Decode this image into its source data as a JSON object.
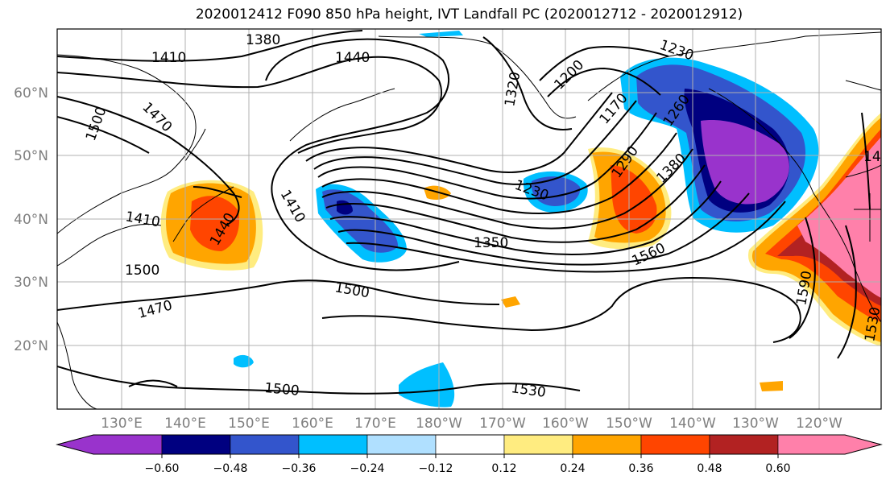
{
  "title": "2020012412 F090 850 hPa height, IVT Landfall PC (2020012712 - 2020012912)",
  "map": {
    "lon_labels": [
      "130°E",
      "140°E",
      "150°E",
      "160°E",
      "170°E",
      "180°W",
      "170°W",
      "160°W",
      "150°W",
      "140°W",
      "130°W",
      "120°W"
    ],
    "lat_labels": [
      "60°N",
      "50°N",
      "40°N",
      "30°N",
      "20°N"
    ],
    "contour_labels": [
      "1380",
      "1410",
      "1440",
      "1470",
      "1500",
      "1320",
      "1200",
      "1230",
      "1170",
      "1260",
      "1290",
      "1380",
      "1410",
      "1440",
      "1500",
      "1410",
      "1230",
      "1350",
      "1560",
      "1500",
      "1470",
      "1500",
      "1530",
      "1590",
      "1530",
      "14"
    ]
  },
  "colorbar": {
    "colors": [
      "#9933cc",
      "#000080",
      "#3355cc",
      "#00bfff",
      "#b0e0ff",
      "#ffffff",
      "#ffec80",
      "#ffa500",
      "#ff4500",
      "#b22222",
      "#ff80aa"
    ],
    "tick_labels": [
      "−0.60",
      "−0.48",
      "−0.36",
      "−0.24",
      "−0.12",
      "0.12",
      "0.24",
      "0.36",
      "0.48",
      "0.60"
    ]
  }
}
